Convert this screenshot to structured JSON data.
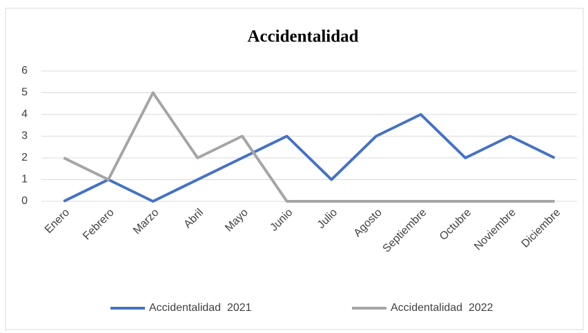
{
  "chart_data": {
    "type": "line",
    "title": "Accidentalidad",
    "categories": [
      "Enero",
      "Febrero",
      "Marzo",
      "Abril",
      "Mayo",
      "Junio",
      "Julio",
      "Agosto",
      "Septiembre",
      "Octubre",
      "Noviembre",
      "Diciembre"
    ],
    "series": [
      {
        "name": "Accidentalidad  2021",
        "color": "#4472c4",
        "values": [
          0,
          1,
          0,
          1,
          2,
          3,
          1,
          3,
          4,
          2,
          3,
          2
        ]
      },
      {
        "name": "Accidentalidad  2022",
        "color": "#a5a5a5",
        "values": [
          2,
          1,
          5,
          2,
          3,
          0,
          0,
          0,
          0,
          0,
          0,
          0
        ]
      }
    ],
    "ylim": [
      0,
      6
    ],
    "yticks": [
      0,
      1,
      2,
      3,
      4,
      5,
      6
    ],
    "grid": true,
    "legend": "bottom"
  }
}
